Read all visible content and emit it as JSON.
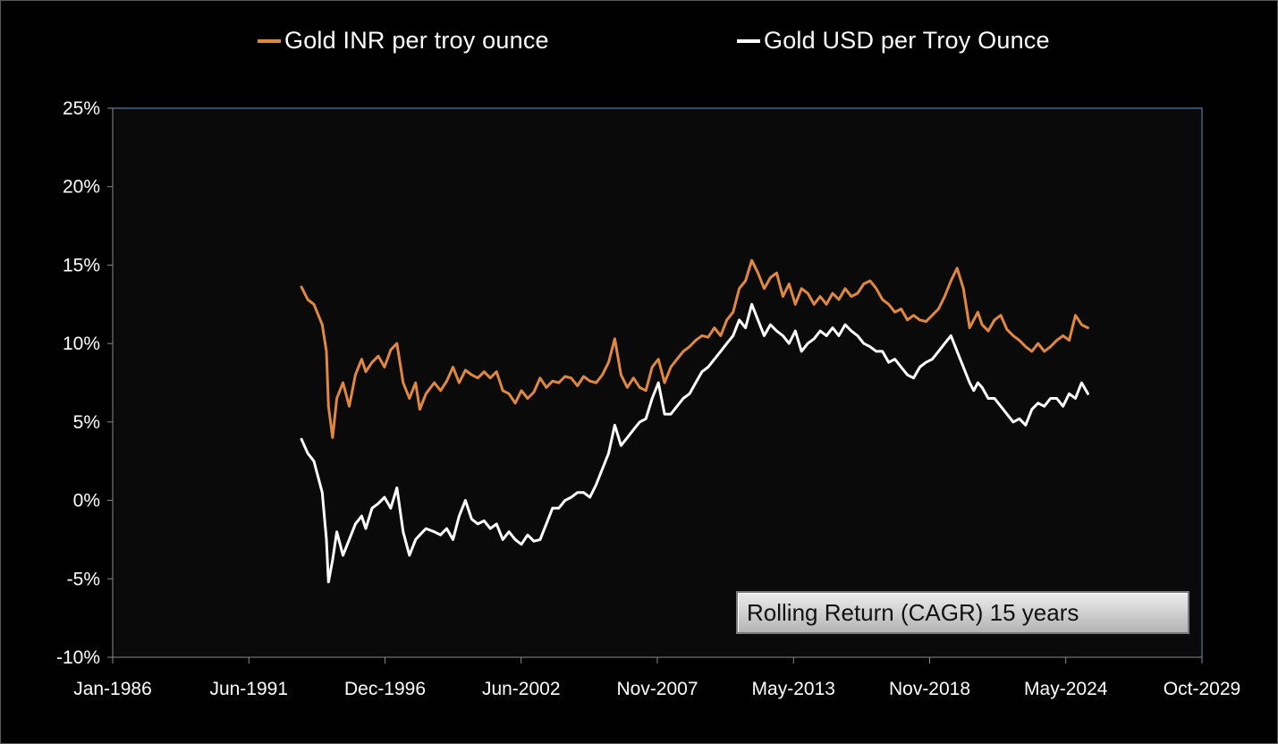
{
  "chart_data": {
    "type": "line",
    "title": "",
    "xlabel": "",
    "ylabel": "",
    "x_tick_labels": [
      "Jan-1986",
      "Jun-1991",
      "Dec-1996",
      "Jun-2002",
      "Nov-2007",
      "May-2013",
      "Nov-2018",
      "May-2024",
      "Oct-2029"
    ],
    "y_tick_labels": [
      "25%",
      "20%",
      "15%",
      "10%",
      "5%",
      "0%",
      "-5%",
      "-10%"
    ],
    "xlim": [
      "1986-01",
      "2029-10"
    ],
    "ylim": [
      -10,
      25
    ],
    "y_unit": "%",
    "grid": false,
    "legend_position": "top",
    "annotation": "Rolling Return (CAGR) 15 years",
    "series": [
      {
        "name": "Gold INR per troy ounce",
        "color": "#e0883f",
        "x": [
          "1993-08",
          "1993-11",
          "1994-02",
          "1994-06",
          "1994-08",
          "1994-09",
          "1994-11",
          "1995-01",
          "1995-04",
          "1995-07",
          "1995-10",
          "1996-01",
          "1996-03",
          "1996-06",
          "1996-09",
          "1996-12",
          "1997-03",
          "1997-06",
          "1997-09",
          "1997-12",
          "1998-03",
          "1998-05",
          "1998-08",
          "1998-12",
          "1999-03",
          "1999-06",
          "1999-09",
          "1999-12",
          "2000-03",
          "2000-06",
          "2000-09",
          "2000-12",
          "2001-03",
          "2001-06",
          "2001-09",
          "2001-12",
          "2002-03",
          "2002-06",
          "2002-09",
          "2002-12",
          "2003-03",
          "2003-06",
          "2003-09",
          "2003-12",
          "2004-03",
          "2004-06",
          "2004-09",
          "2004-12",
          "2005-03",
          "2005-06",
          "2005-09",
          "2005-12",
          "2006-03",
          "2006-06",
          "2006-09",
          "2006-12",
          "2007-03",
          "2007-06",
          "2007-09",
          "2007-12",
          "2008-03",
          "2008-06",
          "2008-09",
          "2008-12",
          "2009-03",
          "2009-06",
          "2009-09",
          "2009-12",
          "2010-03",
          "2010-06",
          "2010-09",
          "2010-12",
          "2011-03",
          "2011-06",
          "2011-09",
          "2011-12",
          "2012-03",
          "2012-06",
          "2012-09",
          "2012-12",
          "2013-03",
          "2013-06",
          "2013-09",
          "2013-12",
          "2014-03",
          "2014-06",
          "2014-09",
          "2014-12",
          "2015-03",
          "2015-06",
          "2015-09",
          "2015-12",
          "2016-03",
          "2016-06",
          "2016-09",
          "2016-12",
          "2017-03",
          "2017-06",
          "2017-09",
          "2017-12",
          "2018-03",
          "2018-06",
          "2018-09",
          "2018-12",
          "2019-03",
          "2019-06",
          "2019-09",
          "2019-12",
          "2020-03",
          "2020-06",
          "2020-08",
          "2020-10",
          "2020-12",
          "2021-03",
          "2021-06",
          "2021-09",
          "2021-12",
          "2022-03",
          "2022-06",
          "2022-09",
          "2022-12",
          "2023-03",
          "2023-06",
          "2023-09",
          "2023-12",
          "2024-03",
          "2024-06",
          "2024-09",
          "2024-12",
          "2025-03"
        ],
        "values": [
          13.6,
          12.8,
          12.5,
          11.2,
          9.5,
          6.0,
          4.0,
          6.5,
          7.5,
          6.0,
          8.0,
          9.0,
          8.2,
          8.8,
          9.2,
          8.5,
          9.6,
          10.0,
          7.5,
          6.5,
          7.5,
          5.8,
          6.8,
          7.5,
          7.0,
          7.6,
          8.5,
          7.5,
          8.3,
          8.0,
          7.8,
          8.2,
          7.8,
          8.2,
          7.0,
          6.8,
          6.2,
          7.0,
          6.5,
          6.9,
          7.8,
          7.2,
          7.6,
          7.5,
          7.9,
          7.8,
          7.3,
          7.9,
          7.6,
          7.5,
          8.0,
          8.8,
          10.3,
          8.0,
          7.2,
          7.8,
          7.2,
          7.0,
          8.5,
          9.0,
          7.5,
          8.5,
          9.0,
          9.5,
          9.8,
          10.2,
          10.5,
          10.4,
          11.0,
          10.5,
          11.5,
          12.0,
          13.5,
          14.0,
          15.3,
          14.5,
          13.5,
          14.2,
          14.5,
          13.0,
          13.8,
          12.5,
          13.5,
          13.2,
          12.5,
          13.0,
          12.5,
          13.2,
          12.8,
          13.5,
          13.0,
          13.2,
          13.8,
          14.0,
          13.5,
          12.8,
          12.5,
          12.0,
          12.2,
          11.5,
          11.8,
          11.5,
          11.4,
          11.8,
          12.2,
          13.0,
          14.0,
          14.8,
          13.5,
          11.0,
          11.5,
          12.0,
          11.2,
          10.8,
          11.5,
          11.8,
          10.9,
          10.5,
          10.2,
          9.8,
          9.5,
          10.0,
          9.5,
          9.8,
          10.2,
          10.5,
          10.2,
          11.8,
          11.2,
          11.0
        ]
      },
      {
        "name": "Gold USD per Troy Ounce",
        "color": "#ffffff",
        "x": [
          "1993-08",
          "1993-11",
          "1994-02",
          "1994-06",
          "1994-08",
          "1994-09",
          "1994-11",
          "1995-01",
          "1995-04",
          "1995-07",
          "1995-10",
          "1996-01",
          "1996-03",
          "1996-06",
          "1996-09",
          "1996-12",
          "1997-03",
          "1997-06",
          "1997-09",
          "1997-12",
          "1998-03",
          "1998-05",
          "1998-08",
          "1998-12",
          "1999-03",
          "1999-06",
          "1999-09",
          "1999-12",
          "2000-03",
          "2000-06",
          "2000-09",
          "2000-12",
          "2001-03",
          "2001-06",
          "2001-09",
          "2001-12",
          "2002-03",
          "2002-06",
          "2002-09",
          "2002-12",
          "2003-03",
          "2003-06",
          "2003-09",
          "2003-12",
          "2004-03",
          "2004-06",
          "2004-09",
          "2004-12",
          "2005-03",
          "2005-06",
          "2005-09",
          "2005-12",
          "2006-03",
          "2006-06",
          "2006-09",
          "2006-12",
          "2007-03",
          "2007-06",
          "2007-09",
          "2007-12",
          "2008-03",
          "2008-06",
          "2008-09",
          "2008-12",
          "2009-03",
          "2009-06",
          "2009-09",
          "2009-12",
          "2010-03",
          "2010-06",
          "2010-09",
          "2010-12",
          "2011-03",
          "2011-06",
          "2011-09",
          "2011-12",
          "2012-03",
          "2012-06",
          "2012-09",
          "2012-12",
          "2013-03",
          "2013-06",
          "2013-09",
          "2013-12",
          "2014-03",
          "2014-06",
          "2014-09",
          "2014-12",
          "2015-03",
          "2015-06",
          "2015-09",
          "2015-12",
          "2016-03",
          "2016-06",
          "2016-09",
          "2016-12",
          "2017-03",
          "2017-06",
          "2017-09",
          "2017-12",
          "2018-03",
          "2018-06",
          "2018-09",
          "2018-12",
          "2019-03",
          "2019-06",
          "2019-09",
          "2019-12",
          "2020-03",
          "2020-06",
          "2020-08",
          "2020-10",
          "2020-12",
          "2021-03",
          "2021-06",
          "2021-09",
          "2021-12",
          "2022-03",
          "2022-06",
          "2022-09",
          "2022-12",
          "2023-03",
          "2023-06",
          "2023-09",
          "2023-12",
          "2024-03",
          "2024-06",
          "2024-09",
          "2024-12",
          "2025-03"
        ],
        "values": [
          3.9,
          3.0,
          2.5,
          0.5,
          -2.5,
          -5.2,
          -3.8,
          -2.0,
          -3.5,
          -2.5,
          -1.5,
          -1.0,
          -1.8,
          -0.5,
          -0.2,
          0.2,
          -0.5,
          0.8,
          -2.0,
          -3.5,
          -2.5,
          -2.2,
          -1.8,
          -2.0,
          -2.2,
          -1.8,
          -2.5,
          -1.0,
          0.0,
          -1.2,
          -1.5,
          -1.3,
          -1.8,
          -1.5,
          -2.5,
          -2.0,
          -2.5,
          -2.8,
          -2.2,
          -2.6,
          -2.5,
          -1.5,
          -0.5,
          -0.5,
          0.0,
          0.2,
          0.5,
          0.5,
          0.2,
          1.0,
          2.0,
          3.0,
          4.8,
          3.5,
          4.0,
          4.5,
          5.0,
          5.2,
          6.5,
          7.5,
          5.5,
          5.5,
          6.0,
          6.5,
          6.8,
          7.5,
          8.2,
          8.5,
          9.0,
          9.5,
          10.0,
          10.5,
          11.5,
          11.0,
          12.5,
          11.5,
          10.5,
          11.2,
          10.8,
          10.5,
          10.0,
          10.8,
          9.5,
          10.0,
          10.3,
          10.8,
          10.5,
          11.0,
          10.5,
          11.2,
          10.8,
          10.5,
          10.0,
          9.8,
          9.5,
          9.5,
          8.8,
          9.0,
          8.5,
          8.0,
          7.8,
          8.5,
          8.8,
          9.0,
          9.5,
          10.0,
          10.5,
          9.5,
          8.5,
          7.5,
          7.0,
          7.5,
          7.2,
          6.5,
          6.5,
          6.0,
          5.5,
          5.0,
          5.2,
          4.8,
          5.8,
          6.2,
          6.0,
          6.5,
          6.5,
          6.0,
          6.8,
          6.5,
          7.5,
          6.8
        ]
      }
    ]
  }
}
